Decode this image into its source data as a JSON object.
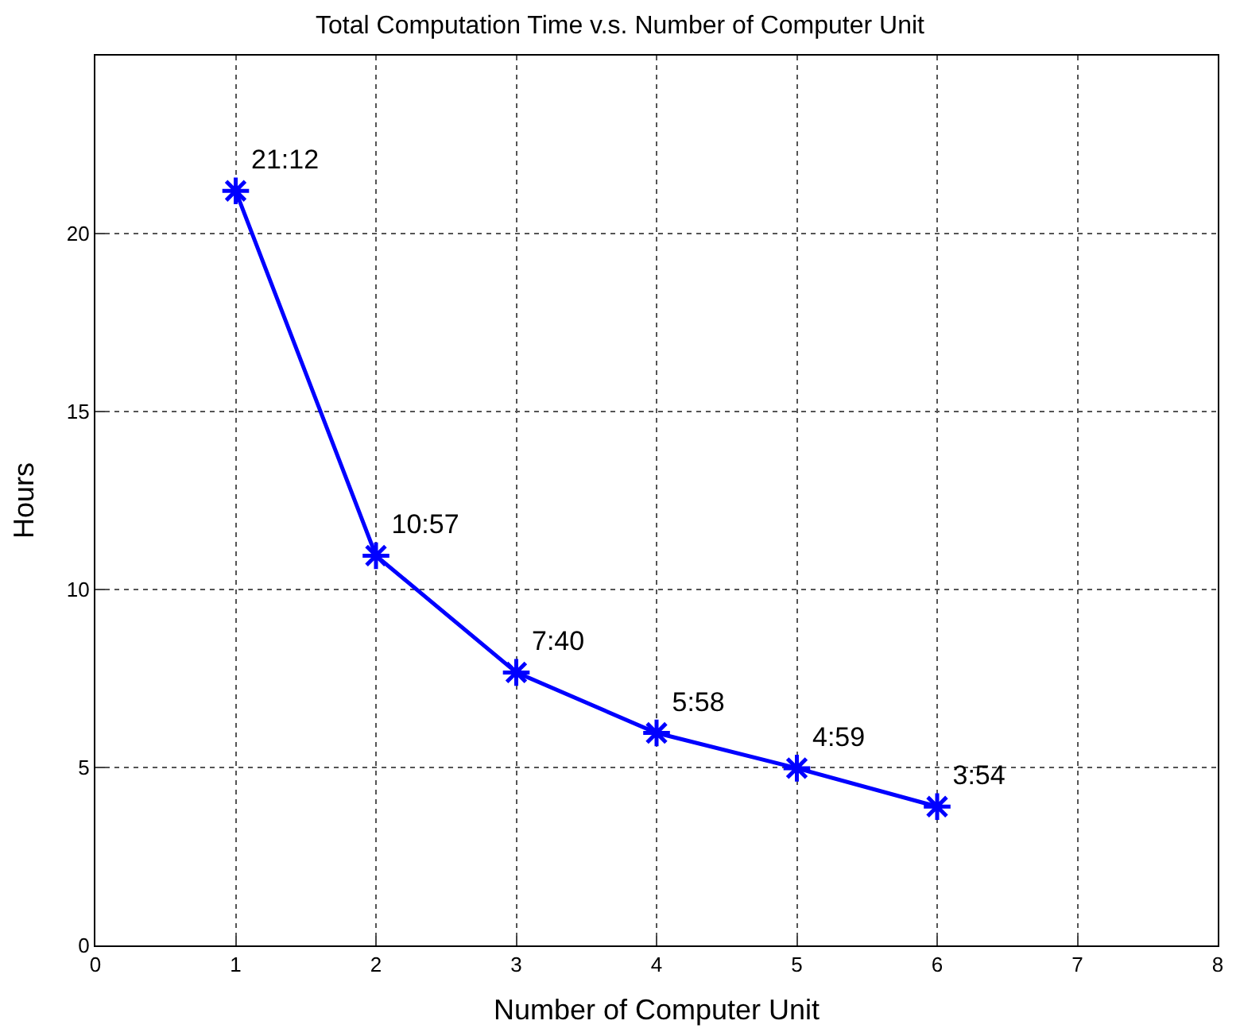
{
  "chart_data": {
    "type": "line",
    "title": "Total Computation Time v.s. Number of Computer Unit",
    "xlabel": "Number of Computer Unit",
    "ylabel": "Hours",
    "x": [
      1,
      2,
      3,
      4,
      5,
      6
    ],
    "series": [
      {
        "color": "#0000ff",
        "values": [
          21.2,
          10.95,
          7.67,
          5.97,
          4.98,
          3.9
        ],
        "value_labels": [
          "21:12",
          "10:57",
          "7:40",
          "5:58",
          "4:59",
          "3:54"
        ]
      }
    ],
    "xlim": [
      0,
      8
    ],
    "xticks": [
      0,
      1,
      2,
      3,
      4,
      5,
      6,
      7,
      8
    ],
    "ylim": [
      0,
      25
    ],
    "yticks": [
      0,
      5,
      10,
      15,
      20
    ],
    "grid": true,
    "legend": false,
    "marker": "cross",
    "line_style": "solid"
  }
}
